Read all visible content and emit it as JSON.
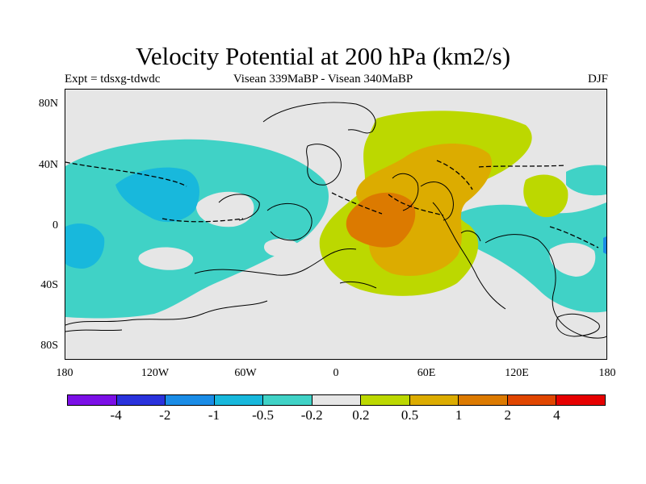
{
  "title": "Velocity Potential at 200 hPa (km2/s)",
  "subtitle_left": "Expt = tdsxg-tdwdc",
  "subtitle_center": "Visean 339MaBP - Visean   340MaBP",
  "subtitle_right": "DJF",
  "map": {
    "lon_range": [
      -180,
      180
    ],
    "lat_range": [
      -90,
      90
    ],
    "y_ticks": [
      "80N",
      "40N",
      "0",
      "40S",
      "80S"
    ],
    "x_ticks": [
      "180",
      "120W",
      "60W",
      "0",
      "60E",
      "120E",
      "180"
    ],
    "background_color": "#e6e6e6",
    "colors": {
      "neg_0_5": "#40d2c6",
      "neg_1": "#18b8dc",
      "neg_2": "#1a8ce6",
      "pos_0_2": "#bcd800",
      "pos_0_5": "#dcac00",
      "pos_1": "#dc7a00"
    }
  },
  "colorbar": {
    "labels": [
      "-4",
      "-2",
      "-1",
      "-0.5",
      "-0.2",
      "0.2",
      "0.5",
      "1",
      "2",
      "4"
    ],
    "colors": [
      "#7b0fe6",
      "#2a32dc",
      "#1a8ce6",
      "#18b8dc",
      "#40d2c6",
      "#e6e6e6",
      "#bcd800",
      "#dcac00",
      "#dc7a00",
      "#e04600",
      "#e60000"
    ]
  }
}
